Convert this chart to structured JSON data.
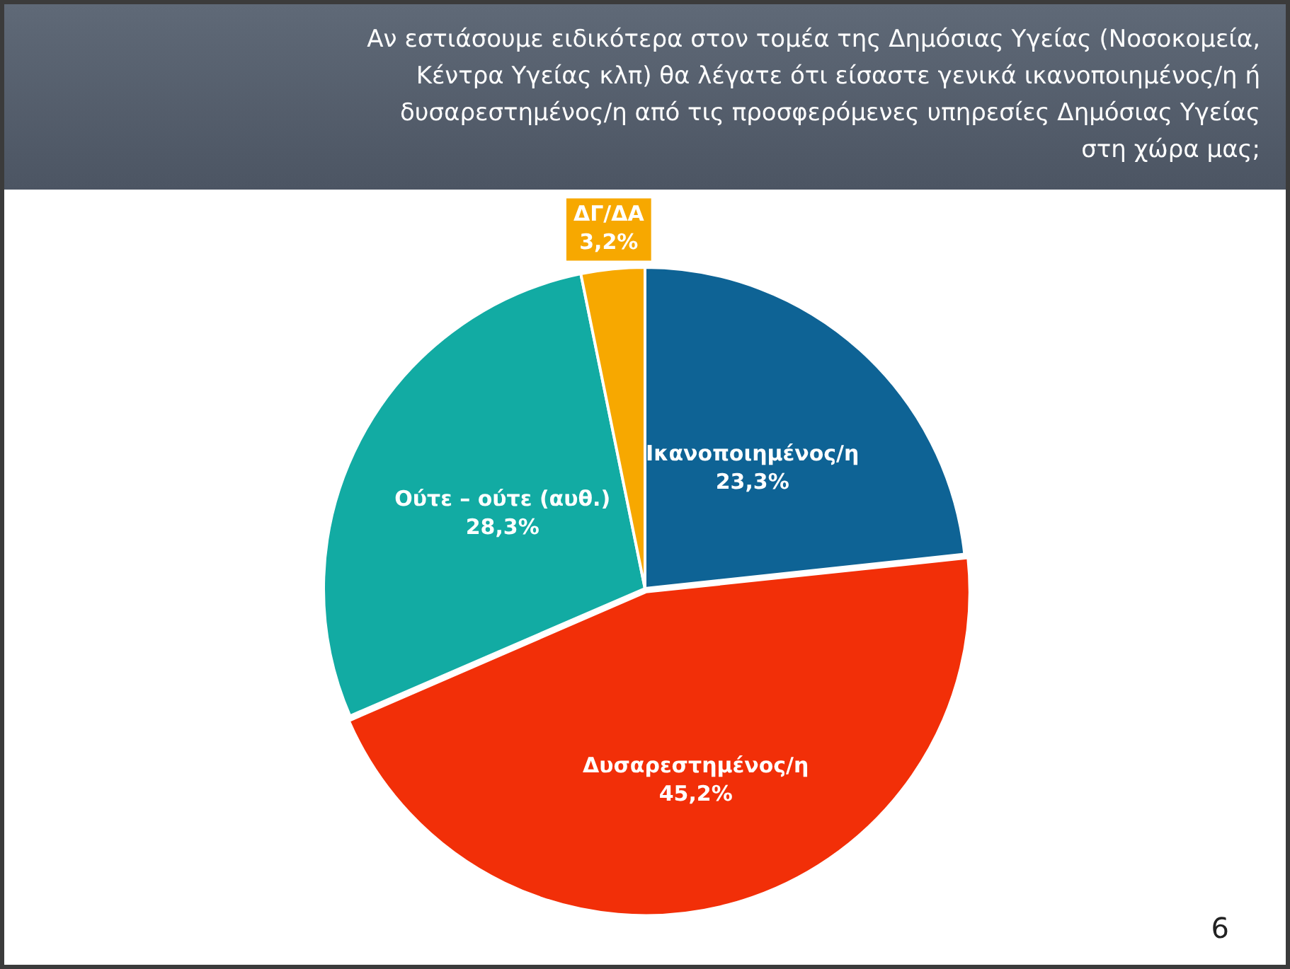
{
  "chart_data": {
    "type": "pie",
    "title": "Αν εστιάσουμε ειδικότερα στον τομέα της Δημόσιας Υγείας (Νοσοκομεία, Κέντρα Υγείας κλπ) θα λέγατε ότι είσαστε γενικά ικανοποιημένος/η ή δυσαρεστημένος/η από τις προσφερόμενες υπηρεσίες Δημόσιας Υγείας στη χώρα μας;",
    "categories": [
      "Ικανοποιημένος/η",
      "Δυσαρεστημένος/η",
      "Ούτε – ούτε (αυθ.)",
      "ΔΓ/ΔΑ"
    ],
    "values": [
      23.3,
      45.2,
      28.3,
      3.2
    ],
    "colors": [
      "#0e6395",
      "#f22f08",
      "#12aba3",
      "#f7a800"
    ],
    "value_labels": [
      "23,3%",
      "45,2%",
      "28,3%",
      "3,2%"
    ],
    "legend": false,
    "annotations": [
      "6"
    ]
  }
}
